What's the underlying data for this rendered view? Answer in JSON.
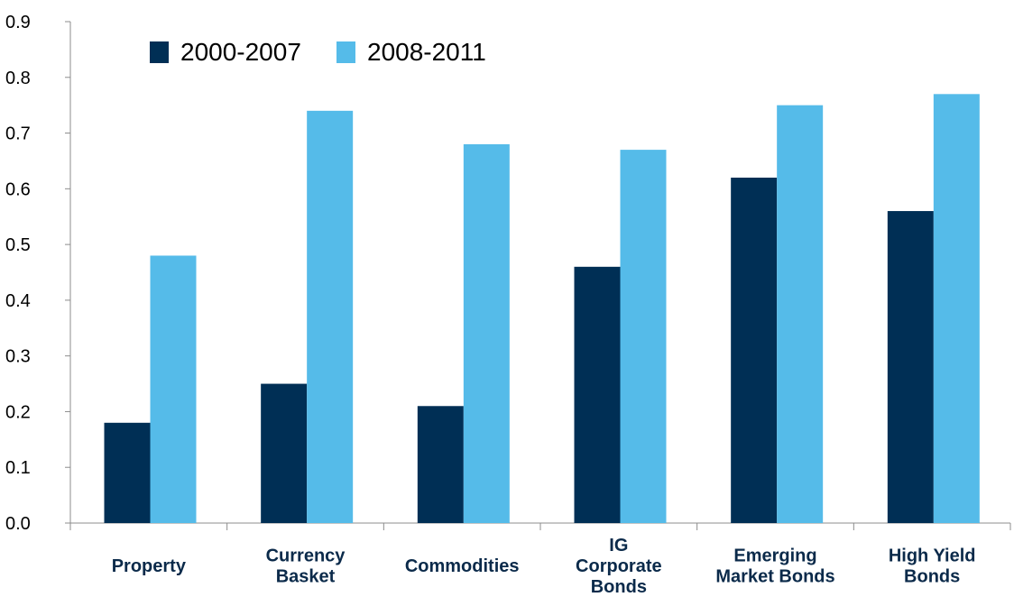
{
  "chart_data": {
    "type": "bar",
    "title": "",
    "xlabel": "",
    "ylabel": "",
    "categories": [
      [
        "Property"
      ],
      [
        "Currency",
        "Basket"
      ],
      [
        "Commodities"
      ],
      [
        "IG",
        "Corporate",
        "Bonds"
      ],
      [
        "Emerging",
        "Market Bonds"
      ],
      [
        "High Yield",
        "Bonds"
      ]
    ],
    "series": [
      {
        "name": "2000-2007",
        "color": "#002f55",
        "values": [
          0.18,
          0.25,
          0.21,
          0.46,
          0.62,
          0.56
        ]
      },
      {
        "name": "2008-2011",
        "color": "#55bbe9",
        "values": [
          0.48,
          0.74,
          0.68,
          0.67,
          0.75,
          0.77
        ]
      }
    ],
    "ylim": [
      0,
      0.9
    ],
    "yticks": [
      "0.0",
      "0.1",
      "0.2",
      "0.3",
      "0.4",
      "0.5",
      "0.6",
      "0.7",
      "0.8",
      "0.9"
    ],
    "grid": false,
    "legend_position": "top-left"
  }
}
